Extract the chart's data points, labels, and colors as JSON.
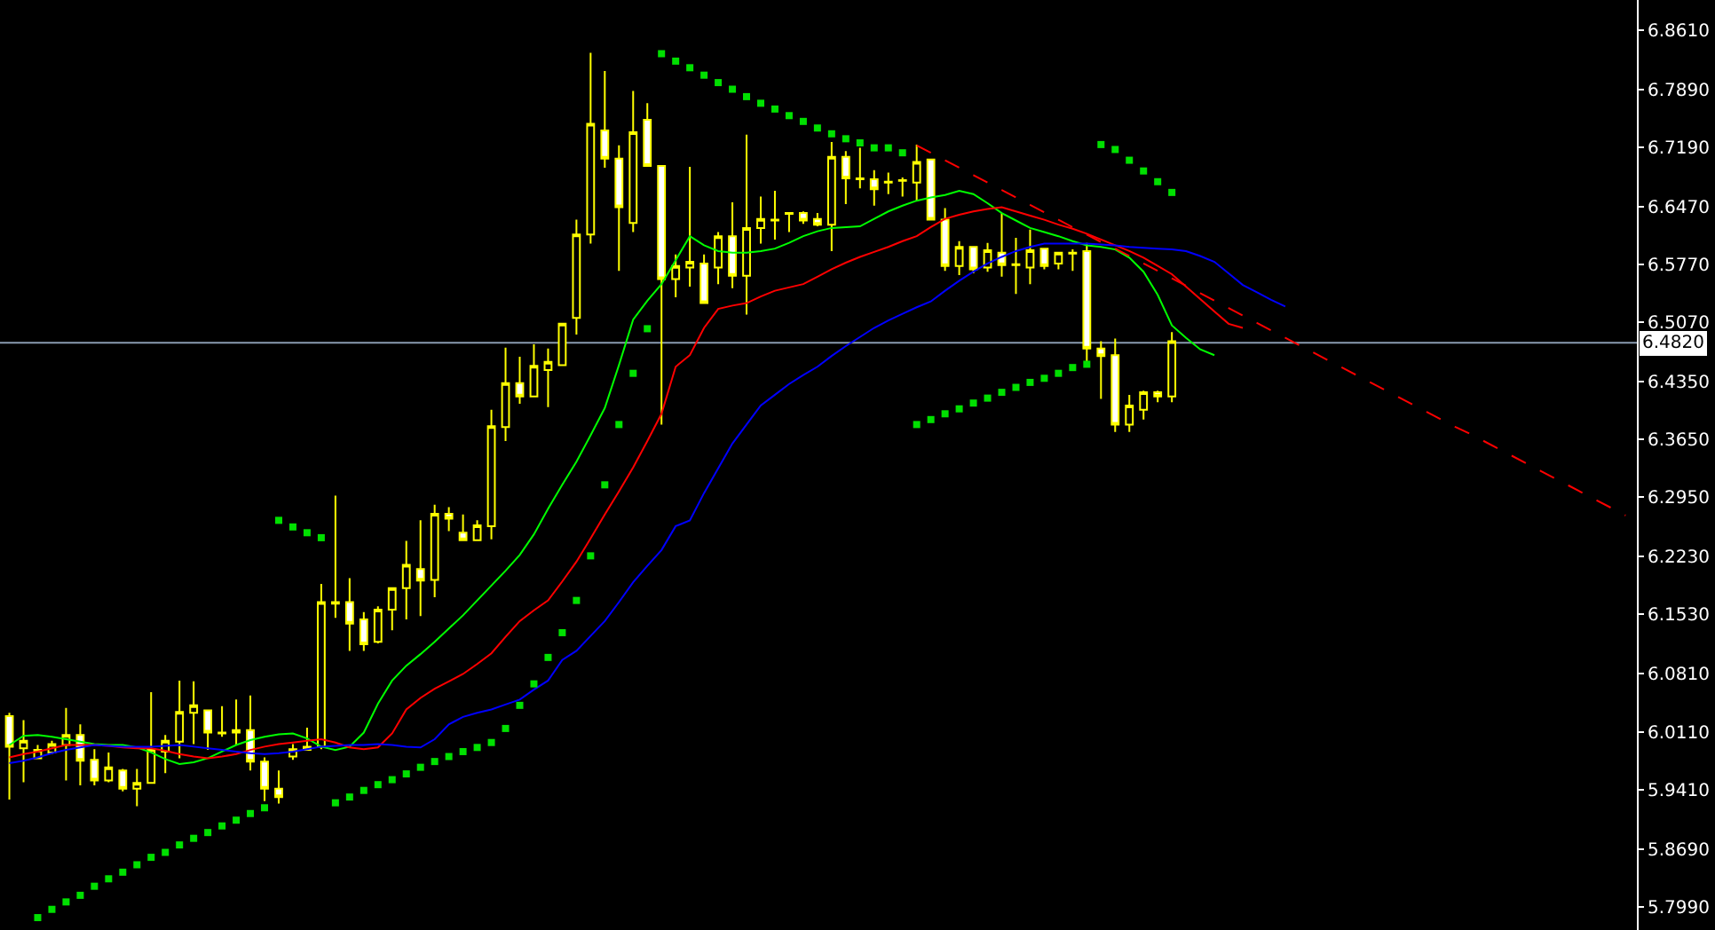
{
  "chart_data": {
    "type": "candlestick",
    "categories": [
      null,
      null,
      null,
      null,
      null,
      null,
      null,
      null,
      null,
      null,
      null,
      null,
      null,
      null,
      null,
      null,
      null,
      null,
      null,
      null,
      null,
      null,
      null,
      null,
      null,
      null,
      null,
      null,
      null,
      null,
      null,
      null,
      null,
      null,
      null,
      null,
      null,
      null,
      null,
      null,
      null,
      null,
      null,
      null,
      null,
      null,
      null,
      null,
      null,
      null,
      null,
      null,
      null,
      null,
      null,
      null,
      null,
      null,
      null,
      null,
      null,
      null,
      null,
      null,
      null,
      null,
      null,
      null,
      null,
      null,
      null,
      null,
      null,
      null,
      null,
      null,
      null,
      null,
      null,
      null,
      null,
      null,
      null,
      null,
      null,
      null,
      null,
      null,
      null,
      null,
      null,
      null,
      null,
      null,
      null,
      null,
      null,
      null,
      null,
      null,
      null,
      null,
      null,
      null,
      null,
      null,
      null,
      null,
      null,
      null,
      null,
      null,
      null,
      null,
      null
    ],
    "ohlc": [
      [
        6.03,
        6.034,
        5.929,
        5.993
      ],
      [
        5.991,
        6.025,
        5.95,
        6.0
      ],
      [
        5.979,
        5.995,
        5.979,
        5.989
      ],
      [
        5.986,
        6.0,
        5.984,
        5.996
      ],
      [
        5.995,
        6.04,
        5.952,
        6.007
      ],
      [
        6.007,
        6.02,
        5.946,
        5.976
      ],
      [
        5.977,
        5.99,
        5.946,
        5.952
      ],
      [
        5.952,
        5.986,
        5.95,
        5.968
      ],
      [
        5.964,
        5.966,
        5.939,
        5.942
      ],
      [
        5.942,
        5.966,
        5.921,
        5.949
      ],
      [
        5.949,
        6.059,
        5.949,
        5.99
      ],
      [
        5.987,
        6.007,
        5.961,
        6.0
      ],
      [
        5.999,
        6.073,
        5.979,
        6.035
      ],
      [
        6.034,
        6.072,
        5.996,
        6.043
      ],
      [
        6.037,
        6.037,
        5.989,
        6.01
      ],
      [
        6.01,
        6.042,
        6.005,
        6.009
      ],
      [
        6.01,
        6.05,
        5.995,
        6.013
      ],
      [
        6.013,
        6.055,
        5.964,
        5.975
      ],
      [
        5.975,
        5.98,
        5.927,
        5.942
      ],
      [
        5.942,
        5.964,
        5.924,
        5.932
      ],
      [
        5.981,
        5.996,
        5.977,
        5.99
      ],
      [
        5.989,
        6.016,
        5.989,
        5.993
      ],
      [
        5.993,
        6.19,
        5.99,
        6.168
      ],
      [
        6.166,
        6.297,
        6.149,
        6.168
      ],
      [
        6.168,
        6.197,
        6.109,
        6.142
      ],
      [
        6.147,
        6.156,
        6.109,
        6.117
      ],
      [
        6.12,
        6.163,
        6.118,
        6.159
      ],
      [
        6.159,
        6.185,
        6.134,
        6.185
      ],
      [
        6.185,
        6.242,
        6.147,
        6.213
      ],
      [
        6.208,
        6.267,
        6.151,
        6.194
      ],
      [
        6.195,
        6.286,
        6.174,
        6.275
      ],
      [
        6.275,
        6.283,
        6.254,
        6.269
      ],
      [
        6.252,
        6.274,
        6.243,
        6.243
      ],
      [
        6.243,
        6.267,
        6.243,
        6.261
      ],
      [
        6.26,
        6.401,
        6.244,
        6.381
      ],
      [
        6.38,
        6.476,
        6.363,
        6.433
      ],
      [
        6.433,
        6.465,
        6.408,
        6.417
      ],
      [
        6.417,
        6.48,
        6.417,
        6.454
      ],
      [
        6.449,
        6.475,
        6.404,
        6.459
      ],
      [
        6.455,
        6.505,
        6.455,
        6.505
      ],
      [
        6.512,
        6.631,
        6.492,
        6.613
      ],
      [
        6.613,
        6.833,
        6.602,
        6.747
      ],
      [
        6.739,
        6.811,
        6.694,
        6.705
      ],
      [
        6.705,
        6.721,
        6.569,
        6.646
      ],
      [
        6.627,
        6.787,
        6.616,
        6.737
      ],
      [
        6.752,
        6.772,
        6.696,
        6.696
      ],
      [
        6.696,
        6.696,
        6.383,
        6.559
      ],
      [
        6.559,
        6.589,
        6.537,
        6.575
      ],
      [
        6.573,
        6.695,
        6.55,
        6.58
      ],
      [
        6.578,
        6.589,
        6.53,
        6.53
      ],
      [
        6.573,
        6.616,
        6.553,
        6.611
      ],
      [
        6.611,
        6.652,
        6.548,
        6.563
      ],
      [
        6.563,
        6.734,
        6.516,
        6.621
      ],
      [
        6.621,
        6.659,
        6.602,
        6.632
      ],
      [
        6.631,
        6.666,
        6.607,
        6.63
      ],
      [
        6.639,
        6.64,
        6.616,
        6.638
      ],
      [
        6.639,
        6.641,
        6.626,
        6.63
      ],
      [
        6.632,
        6.639,
        6.623,
        6.625
      ],
      [
        6.625,
        6.725,
        6.593,
        6.707
      ],
      [
        6.707,
        6.714,
        6.65,
        6.681
      ],
      [
        6.681,
        6.718,
        6.669,
        6.68
      ],
      [
        6.68,
        6.691,
        6.648,
        6.668
      ],
      [
        6.677,
        6.688,
        6.662,
        6.676
      ],
      [
        6.679,
        6.682,
        6.659,
        6.678
      ],
      [
        6.676,
        6.722,
        6.654,
        6.701
      ],
      [
        6.704,
        6.704,
        6.631,
        6.631
      ],
      [
        6.631,
        6.645,
        6.569,
        6.575
      ],
      [
        6.575,
        6.605,
        6.564,
        6.598
      ],
      [
        6.598,
        6.598,
        6.566,
        6.571
      ],
      [
        6.573,
        6.603,
        6.568,
        6.594
      ],
      [
        6.591,
        6.639,
        6.562,
        6.576
      ],
      [
        6.577,
        6.609,
        6.541,
        6.576
      ],
      [
        6.573,
        6.619,
        6.553,
        6.594
      ],
      [
        6.596,
        6.596,
        6.571,
        6.575
      ],
      [
        6.578,
        6.591,
        6.571,
        6.591
      ],
      [
        6.591,
        6.595,
        6.569,
        6.59
      ],
      [
        6.593,
        6.603,
        6.459,
        6.475
      ],
      [
        6.475,
        6.484,
        6.414,
        6.466
      ],
      [
        6.467,
        6.487,
        6.374,
        6.383
      ],
      [
        6.383,
        6.419,
        6.374,
        6.406
      ],
      [
        6.401,
        6.424,
        6.389,
        6.422
      ],
      [
        6.422,
        6.424,
        6.41,
        6.417
      ],
      [
        6.417,
        6.495,
        6.41,
        6.484
      ],
      null,
      null,
      null,
      null,
      null,
      null,
      null,
      null,
      null,
      null,
      null,
      null,
      null,
      null,
      null,
      null,
      null,
      null,
      null,
      null,
      null,
      null,
      null,
      null,
      null,
      null,
      null,
      null,
      null,
      null,
      null,
      null
    ],
    "color": "#ffff00",
    "series": [
      {
        "type": "line",
        "color": "#00ff00",
        "values": [
          5.995,
          6.006,
          6.007,
          6.005,
          6.002,
          5.999,
          5.996,
          5.995,
          5.995,
          5.992,
          5.986,
          5.978,
          5.972,
          5.974,
          5.979,
          5.987,
          5.995,
          6.001,
          6.005,
          6.008,
          6.009,
          6.003,
          5.993,
          5.989,
          5.993,
          6.01,
          6.045,
          6.073,
          6.091,
          6.105,
          6.12,
          6.136,
          6.152,
          6.17,
          6.188,
          6.206,
          6.225,
          6.25,
          6.281,
          6.31,
          6.338,
          6.37,
          6.403,
          6.455,
          6.51,
          6.533,
          6.553,
          6.582,
          6.611,
          6.6,
          6.593,
          6.591,
          6.591,
          6.593,
          6.596,
          6.603,
          6.611,
          6.617,
          6.621,
          6.622,
          6.623,
          6.632,
          6.641,
          6.648,
          6.654,
          6.658,
          6.661,
          6.666,
          6.662,
          6.651,
          6.639,
          6.63,
          6.621,
          6.616,
          6.611,
          6.605,
          6.6,
          6.598,
          6.595,
          6.585,
          6.568,
          6.54,
          6.503,
          6.488,
          6.474,
          6.467,
          null,
          null,
          null,
          null,
          null,
          null,
          null,
          null,
          null,
          null,
          null,
          null,
          null,
          null,
          null,
          null,
          null,
          null,
          null,
          null,
          null,
          null,
          null,
          null,
          null,
          null,
          null,
          null,
          null
        ]
      },
      {
        "type": "line",
        "color": "#ff0000",
        "values": [
          5.98,
          5.984,
          5.987,
          5.991,
          5.995,
          5.995,
          5.995,
          5.994,
          5.992,
          5.991,
          5.991,
          5.988,
          5.984,
          5.981,
          5.979,
          5.981,
          5.984,
          5.989,
          5.993,
          5.996,
          5.998,
          6.0,
          6.002,
          5.998,
          5.992,
          5.99,
          5.992,
          6.009,
          6.038,
          6.052,
          6.063,
          6.072,
          6.081,
          6.093,
          6.106,
          6.126,
          6.145,
          6.158,
          6.17,
          6.193,
          6.217,
          6.245,
          6.274,
          6.302,
          6.331,
          6.363,
          6.396,
          6.453,
          6.467,
          6.5,
          6.523,
          6.527,
          6.53,
          6.538,
          6.545,
          6.549,
          6.553,
          6.562,
          6.571,
          6.579,
          6.586,
          6.592,
          6.598,
          6.605,
          6.611,
          6.622,
          6.632,
          6.637,
          6.641,
          6.644,
          6.646,
          6.641,
          6.636,
          6.631,
          6.625,
          6.62,
          6.614,
          6.607,
          6.6,
          6.593,
          6.585,
          6.575,
          6.565,
          6.55,
          6.535,
          6.52,
          6.505,
          6.5,
          null,
          null,
          null,
          null,
          null,
          null,
          null,
          null,
          null,
          null,
          null,
          null,
          null,
          null,
          null,
          null,
          null,
          null,
          null,
          null,
          null,
          null,
          null,
          null,
          null,
          null,
          null
        ]
      },
      {
        "type": "line",
        "color": "#0000ff",
        "values": [
          5.973,
          5.976,
          5.98,
          5.985,
          5.989,
          5.992,
          5.995,
          5.994,
          5.993,
          5.993,
          5.993,
          5.994,
          5.995,
          5.993,
          5.991,
          5.989,
          5.987,
          5.985,
          5.984,
          5.985,
          5.987,
          5.99,
          5.993,
          5.994,
          5.995,
          5.995,
          5.996,
          5.995,
          5.993,
          5.992,
          6.002,
          6.02,
          6.029,
          6.034,
          6.038,
          6.044,
          6.05,
          6.062,
          6.073,
          6.098,
          6.109,
          6.127,
          6.145,
          6.168,
          6.192,
          6.212,
          6.231,
          6.26,
          6.267,
          6.3,
          6.33,
          6.36,
          6.383,
          6.406,
          6.419,
          6.432,
          6.443,
          6.453,
          6.466,
          6.478,
          6.489,
          6.5,
          6.509,
          6.517,
          6.525,
          6.532,
          6.545,
          6.557,
          6.568,
          6.578,
          6.586,
          6.593,
          6.598,
          6.602,
          6.602,
          6.602,
          6.602,
          6.601,
          6.6,
          6.598,
          6.597,
          6.596,
          6.595,
          6.593,
          6.587,
          6.58,
          6.566,
          6.552,
          6.543,
          6.534,
          6.526,
          null,
          null,
          null,
          null,
          null,
          null,
          null,
          null,
          null,
          null,
          null,
          null,
          null,
          null,
          null,
          null,
          null,
          null,
          null,
          null,
          null,
          null,
          null,
          null
        ]
      },
      {
        "type": "scatter",
        "color": "#00e000",
        "marker": "square",
        "values": [
          null,
          null,
          5.786,
          5.796,
          5.805,
          5.813,
          5.824,
          5.833,
          5.841,
          5.85,
          5.859,
          5.865,
          5.874,
          5.882,
          5.889,
          5.897,
          5.904,
          5.912,
          5.919,
          6.267,
          6.259,
          6.252,
          6.246,
          5.925,
          5.932,
          5.94,
          5.947,
          5.953,
          5.96,
          5.968,
          5.975,
          5.981,
          5.987,
          5.992,
          5.998,
          6.015,
          6.043,
          6.069,
          6.101,
          6.131,
          6.17,
          6.224,
          6.31,
          6.383,
          6.445,
          6.499,
          6.832,
          6.823,
          6.815,
          6.806,
          6.797,
          6.789,
          6.78,
          6.772,
          6.765,
          6.757,
          6.75,
          6.742,
          6.735,
          6.729,
          6.724,
          6.718,
          6.718,
          6.712,
          6.383,
          6.389,
          6.396,
          6.402,
          6.409,
          6.415,
          6.422,
          6.428,
          6.434,
          6.439,
          6.445,
          6.452,
          6.456,
          6.722,
          6.716,
          6.703,
          6.69,
          6.677,
          6.664,
          null,
          null,
          null,
          null,
          null,
          null,
          null,
          null,
          null,
          null,
          null,
          null,
          null,
          null,
          null,
          null,
          null,
          null,
          null,
          null,
          null,
          null,
          null,
          null,
          null,
          null,
          null,
          null,
          null,
          null,
          null,
          null
        ]
      },
      {
        "type": "line",
        "color": "#ff0000",
        "line_style": "dashed",
        "values": [
          null,
          null,
          null,
          null,
          null,
          null,
          null,
          null,
          null,
          null,
          null,
          null,
          null,
          null,
          null,
          null,
          null,
          null,
          null,
          null,
          null,
          null,
          null,
          null,
          null,
          null,
          null,
          null,
          null,
          null,
          null,
          null,
          null,
          null,
          null,
          null,
          null,
          null,
          null,
          null,
          null,
          null,
          null,
          null,
          null,
          null,
          null,
          null,
          null,
          null,
          null,
          null,
          null,
          null,
          null,
          null,
          null,
          null,
          null,
          null,
          null,
          null,
          null,
          null,
          6.721,
          6.712,
          6.703,
          6.694,
          6.685,
          6.676,
          6.667,
          6.658,
          6.649,
          6.64,
          6.631,
          6.622,
          6.613,
          6.604,
          6.596,
          6.587,
          6.578,
          6.569,
          6.56,
          6.551,
          6.542,
          6.533,
          6.524,
          6.515,
          6.506,
          6.497,
          6.488,
          6.479,
          6.47,
          6.461,
          6.452,
          6.443,
          6.434,
          6.425,
          6.416,
          6.407,
          6.398,
          6.389,
          6.38,
          6.372,
          6.363,
          6.354,
          6.345,
          6.336,
          6.327,
          6.318,
          6.309,
          6.3,
          6.291,
          6.282,
          6.273
        ]
      }
    ],
    "ref_lines": [
      {
        "axis": "y",
        "value": 6.482,
        "label": "6.4820",
        "color": "#8a9bb0"
      }
    ],
    "ylim": [
      5.771,
      6.897
    ],
    "yticks": [
      {
        "value": 6.861,
        "label": "6.8610"
      },
      {
        "value": 6.789,
        "label": "6.7890"
      },
      {
        "value": 6.719,
        "label": "6.7190"
      },
      {
        "value": 6.647,
        "label": "6.6470"
      },
      {
        "value": 6.577,
        "label": "6.5770"
      },
      {
        "value": 6.507,
        "label": "6.5070"
      },
      {
        "value": 6.435,
        "label": "6.4350"
      },
      {
        "value": 6.365,
        "label": "6.3650"
      },
      {
        "value": 6.295,
        "label": "6.2950"
      },
      {
        "value": 6.223,
        "label": "6.2230"
      },
      {
        "value": 6.153,
        "label": "6.1530"
      },
      {
        "value": 6.081,
        "label": "6.0810"
      },
      {
        "value": 6.011,
        "label": "6.0110"
      },
      {
        "value": 5.941,
        "label": "5.9410"
      },
      {
        "value": 5.869,
        "label": "5.8690"
      },
      {
        "value": 5.799,
        "label": "5.7990"
      }
    ],
    "tick_labels": "y"
  }
}
